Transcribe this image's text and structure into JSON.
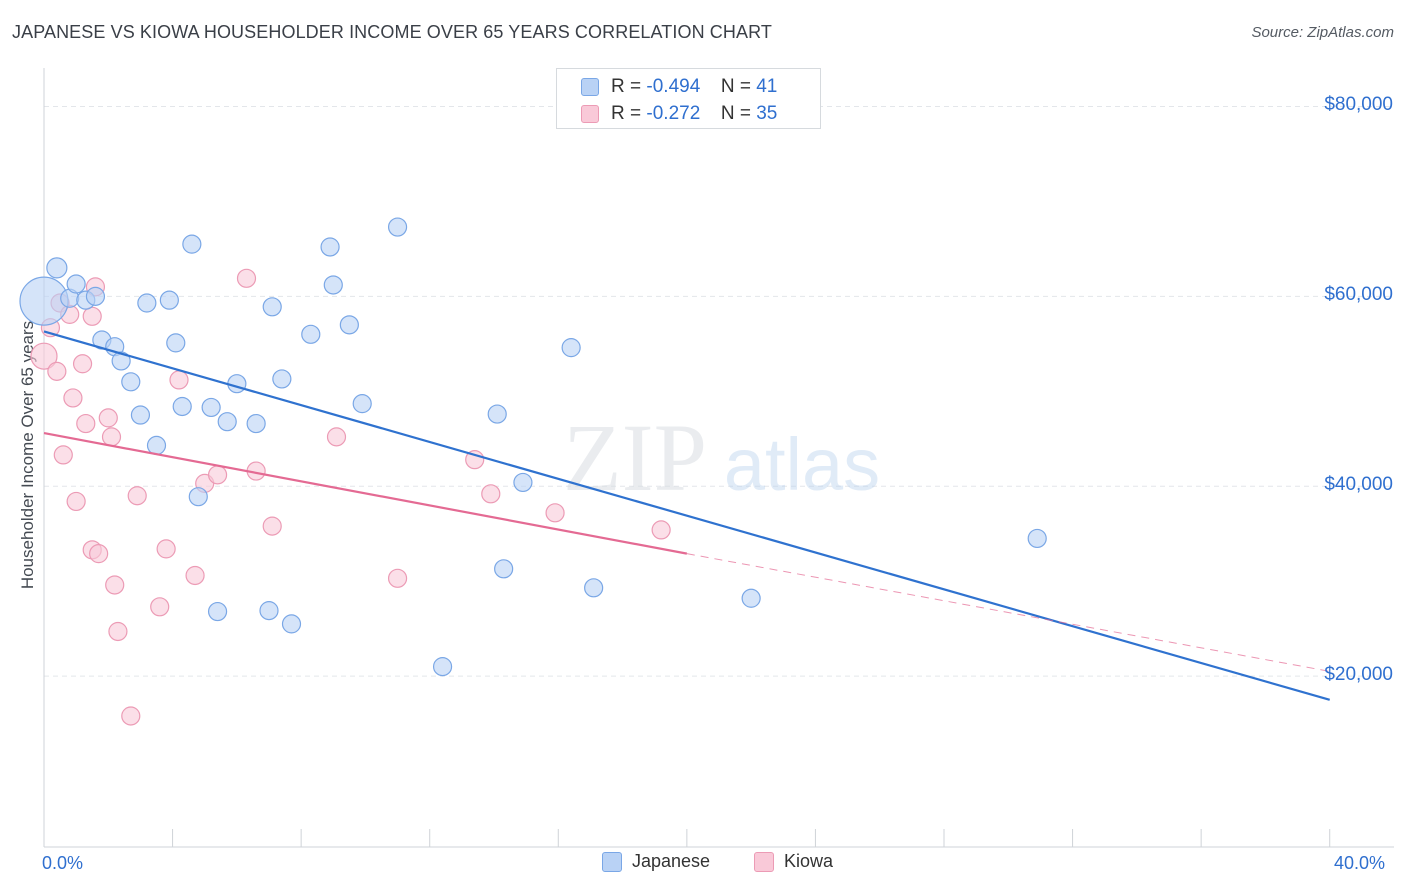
{
  "title": "JAPANESE VS KIOWA HOUSEHOLDER INCOME OVER 65 YEARS CORRELATION CHART",
  "source": "Source: ZipAtlas.com",
  "watermark": {
    "zip": "ZIP",
    "atlas": "atlas"
  },
  "legend_top": [
    {
      "r_label": "R =",
      "r_value": "-0.494",
      "n_label": "N =",
      "n_value": "41"
    },
    {
      "r_label": "R =",
      "r_value": "-0.272",
      "n_label": "N =",
      "n_value": "35"
    }
  ],
  "legend_bottom": [
    "Japanese",
    "Kiowa"
  ],
  "colors": {
    "japanese_fill": "#b9d2f5",
    "japanese_stroke": "#7aa7e6",
    "japanese_line": "#2f72cf",
    "kiowa_fill": "#f9c9d8",
    "kiowa_stroke": "#ec9bb5",
    "kiowa_line": "#e46a93",
    "axis_text": "#2f6fcf",
    "grid": "#e3e6ea"
  },
  "chart_data": {
    "type": "scatter",
    "title": "JAPANESE VS KIOWA HOUSEHOLDER INCOME OVER 65 YEARS CORRELATION CHART",
    "xlabel": "",
    "ylabel": "Householder Income Over 65 years",
    "xlim": [
      0,
      42
    ],
    "ylim": [
      2000,
      83000
    ],
    "x_tick_labels": [
      "0.0%",
      "40.0%"
    ],
    "y_ticks": [
      20000,
      40000,
      60000,
      80000
    ],
    "y_tick_labels": [
      "$20,000",
      "$40,000",
      "$60,000",
      "$80,000"
    ],
    "grid": true,
    "legend_position": "top-center",
    "series": [
      {
        "name": "Japanese",
        "r": -0.494,
        "n": 41,
        "points": [
          {
            "x": 0.0,
            "y": 59500,
            "s": 24
          },
          {
            "x": 0.4,
            "y": 63000,
            "s": 10
          },
          {
            "x": 0.8,
            "y": 59800,
            "s": 9
          },
          {
            "x": 1.0,
            "y": 61300,
            "s": 9
          },
          {
            "x": 1.3,
            "y": 59600,
            "s": 9
          },
          {
            "x": 1.6,
            "y": 60000,
            "s": 9
          },
          {
            "x": 1.8,
            "y": 55400,
            "s": 9
          },
          {
            "x": 2.2,
            "y": 54700,
            "s": 9
          },
          {
            "x": 2.4,
            "y": 53200,
            "s": 9
          },
          {
            "x": 2.7,
            "y": 51000,
            "s": 9
          },
          {
            "x": 3.0,
            "y": 47500,
            "s": 9
          },
          {
            "x": 3.2,
            "y": 59300,
            "s": 9
          },
          {
            "x": 3.5,
            "y": 44300,
            "s": 9
          },
          {
            "x": 3.9,
            "y": 59600,
            "s": 9
          },
          {
            "x": 4.1,
            "y": 55100,
            "s": 9
          },
          {
            "x": 4.3,
            "y": 48400,
            "s": 9
          },
          {
            "x": 4.6,
            "y": 65500,
            "s": 9
          },
          {
            "x": 4.8,
            "y": 38900,
            "s": 9
          },
          {
            "x": 5.2,
            "y": 48300,
            "s": 9
          },
          {
            "x": 5.4,
            "y": 26800,
            "s": 9
          },
          {
            "x": 5.7,
            "y": 46800,
            "s": 9
          },
          {
            "x": 6.0,
            "y": 50800,
            "s": 9
          },
          {
            "x": 6.6,
            "y": 46600,
            "s": 9
          },
          {
            "x": 7.0,
            "y": 26900,
            "s": 9
          },
          {
            "x": 7.1,
            "y": 58900,
            "s": 9
          },
          {
            "x": 7.4,
            "y": 51300,
            "s": 9
          },
          {
            "x": 7.7,
            "y": 25500,
            "s": 9
          },
          {
            "x": 8.3,
            "y": 56000,
            "s": 9
          },
          {
            "x": 8.9,
            "y": 65200,
            "s": 9
          },
          {
            "x": 9.0,
            "y": 61200,
            "s": 9
          },
          {
            "x": 9.5,
            "y": 57000,
            "s": 9
          },
          {
            "x": 9.9,
            "y": 48700,
            "s": 9
          },
          {
            "x": 11.0,
            "y": 67300,
            "s": 9
          },
          {
            "x": 12.4,
            "y": 21000,
            "s": 9
          },
          {
            "x": 14.1,
            "y": 47600,
            "s": 9
          },
          {
            "x": 14.3,
            "y": 31300,
            "s": 9
          },
          {
            "x": 14.9,
            "y": 40400,
            "s": 9
          },
          {
            "x": 16.4,
            "y": 54600,
            "s": 9
          },
          {
            "x": 17.1,
            "y": 29300,
            "s": 9
          },
          {
            "x": 22.0,
            "y": 28200,
            "s": 9
          },
          {
            "x": 30.9,
            "y": 34500,
            "s": 9
          }
        ],
        "trend": {
          "x": [
            0.0,
            40.0
          ],
          "y": [
            56300,
            17500
          ]
        }
      },
      {
        "name": "Kiowa",
        "r": -0.272,
        "n": 35,
        "points": [
          {
            "x": 0.0,
            "y": 53700,
            "s": 13
          },
          {
            "x": 0.2,
            "y": 56700,
            "s": 9
          },
          {
            "x": 0.4,
            "y": 52100,
            "s": 9
          },
          {
            "x": 0.5,
            "y": 59300,
            "s": 9
          },
          {
            "x": 0.6,
            "y": 43300,
            "s": 9
          },
          {
            "x": 0.8,
            "y": 58100,
            "s": 9
          },
          {
            "x": 0.9,
            "y": 49300,
            "s": 9
          },
          {
            "x": 1.0,
            "y": 38400,
            "s": 9
          },
          {
            "x": 1.2,
            "y": 52900,
            "s": 9
          },
          {
            "x": 1.3,
            "y": 46600,
            "s": 9
          },
          {
            "x": 1.5,
            "y": 57900,
            "s": 9
          },
          {
            "x": 1.5,
            "y": 33300,
            "s": 9
          },
          {
            "x": 1.6,
            "y": 61000,
            "s": 9
          },
          {
            "x": 1.7,
            "y": 32900,
            "s": 9
          },
          {
            "x": 2.0,
            "y": 47200,
            "s": 9
          },
          {
            "x": 2.1,
            "y": 45200,
            "s": 9
          },
          {
            "x": 2.2,
            "y": 29600,
            "s": 9
          },
          {
            "x": 2.3,
            "y": 24700,
            "s": 9
          },
          {
            "x": 2.7,
            "y": 15800,
            "s": 9
          },
          {
            "x": 2.9,
            "y": 39000,
            "s": 9
          },
          {
            "x": 3.6,
            "y": 27300,
            "s": 9
          },
          {
            "x": 3.8,
            "y": 33400,
            "s": 9
          },
          {
            "x": 4.2,
            "y": 51200,
            "s": 9
          },
          {
            "x": 4.7,
            "y": 30600,
            "s": 9
          },
          {
            "x": 5.0,
            "y": 40300,
            "s": 9
          },
          {
            "x": 5.4,
            "y": 41200,
            "s": 9
          },
          {
            "x": 6.3,
            "y": 61900,
            "s": 9
          },
          {
            "x": 6.6,
            "y": 41600,
            "s": 9
          },
          {
            "x": 7.1,
            "y": 35800,
            "s": 9
          },
          {
            "x": 9.1,
            "y": 45200,
            "s": 9
          },
          {
            "x": 11.0,
            "y": 30300,
            "s": 9
          },
          {
            "x": 13.4,
            "y": 42800,
            "s": 9
          },
          {
            "x": 13.9,
            "y": 39200,
            "s": 9
          },
          {
            "x": 15.9,
            "y": 37200,
            "s": 9
          },
          {
            "x": 19.2,
            "y": 35400,
            "s": 9
          }
        ],
        "trend": {
          "x": [
            0.0,
            20.0
          ],
          "y": [
            45600,
            32900
          ]
        },
        "trend_extension": {
          "x": [
            20.0,
            40.0
          ],
          "y": [
            32900,
            20500
          ]
        }
      }
    ]
  }
}
